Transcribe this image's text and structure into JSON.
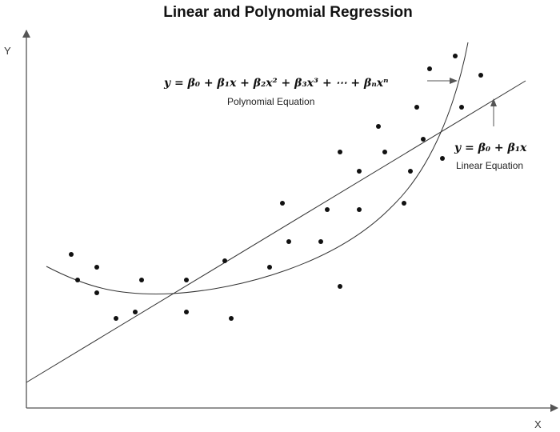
{
  "title": "Linear and Polynomial Regression",
  "axes": {
    "x_label": "X",
    "y_label": "Y"
  },
  "equations": {
    "polynomial": {
      "formula": "y = β₀ + β₁x + β₂x² + β₃x³ + ⋯ + βₙxⁿ",
      "caption": "Polynomial Equation"
    },
    "linear": {
      "formula": "y = β₀ + β₁x",
      "caption": "Linear Equation"
    }
  },
  "colors": {
    "ink": "#111111",
    "axis": "#555555"
  }
}
